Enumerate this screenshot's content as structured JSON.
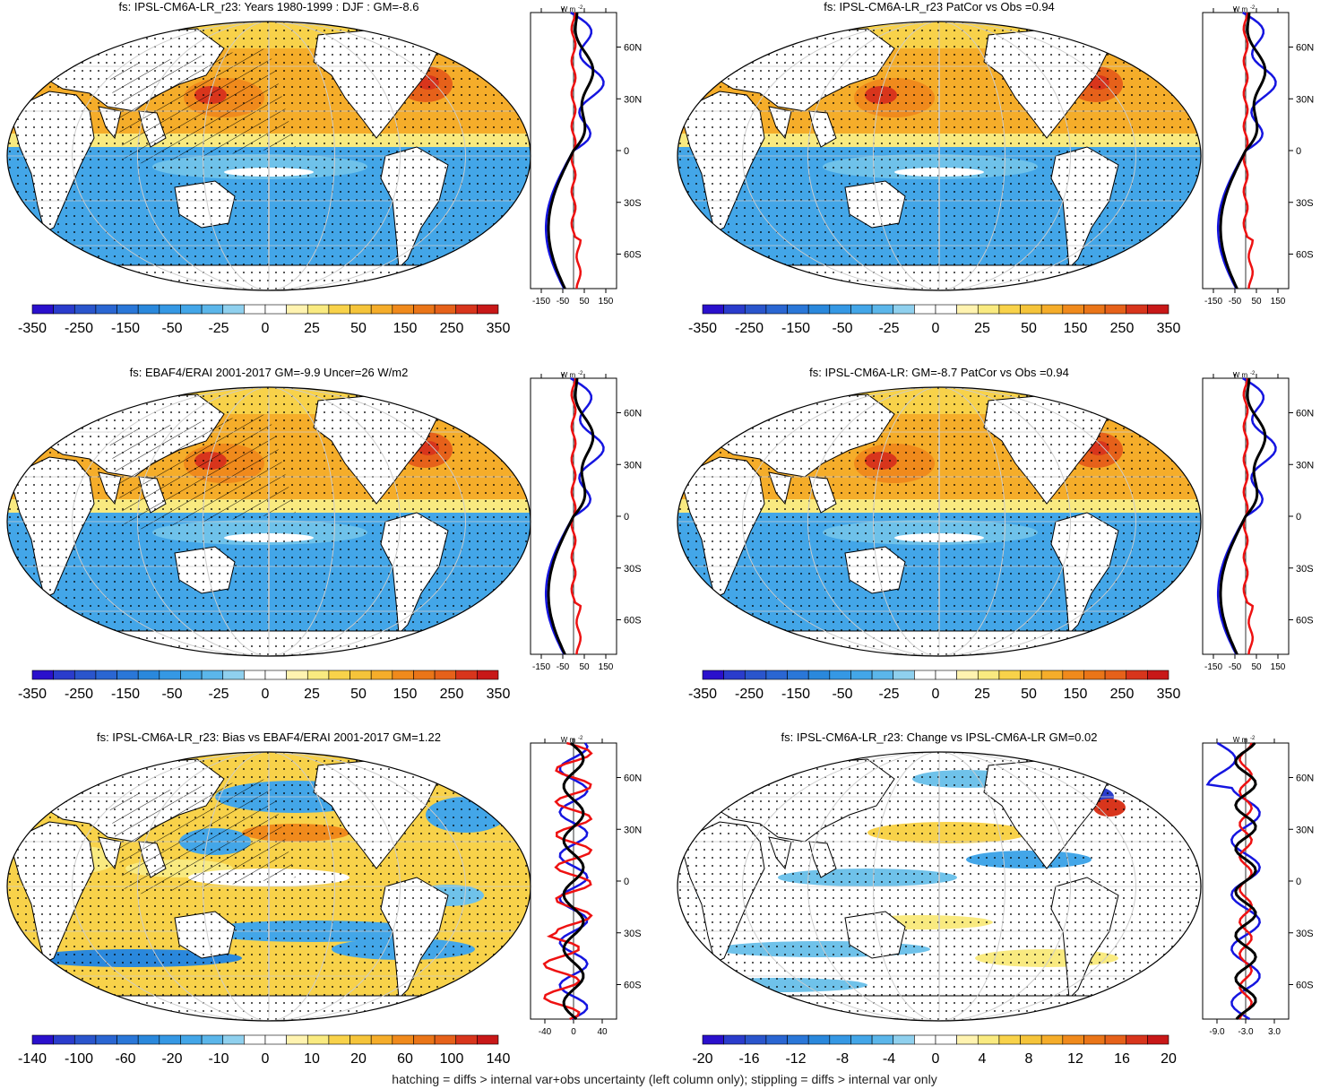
{
  "footnote": "hatching = diffs > internal var+obs uncertainty (left column only); stippling = diffs > internal var only",
  "colors": {
    "land": "#ffffff",
    "warm": [
      "#f9ea80",
      "#f8d24a",
      "#f5ad2a",
      "#f08a1c",
      "#e6611a",
      "#d8351c"
    ],
    "cool": [
      "#6fc2ea",
      "#43a6e8",
      "#2a88dc",
      "#2a66d2",
      "#2a3ccc",
      "#2a10cc"
    ],
    "profile_model": "#000000",
    "profile_obs": "#1515e0",
    "profile_diff": "#ee1111"
  },
  "zonal_axis": {
    "unit_label": "W m",
    "unit_sup": "-2",
    "lat_labels": [
      "60N",
      "30N",
      "0",
      "30S",
      "60S"
    ]
  },
  "panels": [
    {
      "title": "fs: IPSL-CM6A-LR_r23: Years 1980-1999 : DJF : GM=-8.6",
      "colorbar_labels": [
        "-350",
        "-250",
        "-150",
        "-50",
        "-25",
        "0",
        "25",
        "50",
        "150",
        "250",
        "350"
      ],
      "profile_ticks": [
        "-150",
        "-50",
        "50",
        "150"
      ],
      "pattern": "clim",
      "hatch": true
    },
    {
      "title": "fs: IPSL-CM6A-LR_r23 PatCor vs Obs =0.94",
      "colorbar_labels": [
        "-350",
        "-250",
        "-150",
        "-50",
        "-25",
        "0",
        "25",
        "50",
        "150",
        "250",
        "350"
      ],
      "profile_ticks": [
        "-150",
        "-50",
        "50",
        "150"
      ],
      "pattern": "clim",
      "hatch": false
    },
    {
      "title": "fs: EBAF4/ERAI 2001-2017 GM=-9.9 Uncer=26 W/m2",
      "colorbar_labels": [
        "-350",
        "-250",
        "-150",
        "-50",
        "-25",
        "0",
        "25",
        "50",
        "150",
        "250",
        "350"
      ],
      "profile_ticks": [
        "-150",
        "-50",
        "50",
        "150"
      ],
      "pattern": "clim",
      "hatch": true
    },
    {
      "title": "fs: IPSL-CM6A-LR: GM=-8.7 PatCor vs Obs =0.94",
      "colorbar_labels": [
        "-350",
        "-250",
        "-150",
        "-50",
        "-25",
        "0",
        "25",
        "50",
        "150",
        "250",
        "350"
      ],
      "profile_ticks": [
        "-150",
        "-50",
        "50",
        "150"
      ],
      "pattern": "clim",
      "hatch": false
    },
    {
      "title": "fs: IPSL-CM6A-LR_r23: Bias vs EBAF4/ERAI 2001-2017 GM=1.22",
      "colorbar_labels": [
        "-140",
        "-100",
        "-60",
        "-20",
        "-10",
        "0",
        "10",
        "20",
        "60",
        "100",
        "140"
      ],
      "profile_ticks": [
        "-40",
        "0",
        "40"
      ],
      "pattern": "bias",
      "hatch": true
    },
    {
      "title": "fs: IPSL-CM6A-LR_r23: Change vs IPSL-CM6A-LR GM=0.02",
      "colorbar_labels": [
        "-20",
        "-16",
        "-12",
        "-8",
        "-4",
        "0",
        "4",
        "8",
        "12",
        "16",
        "20"
      ],
      "profile_ticks": [
        "-9.0",
        "-3.0",
        "3.0"
      ],
      "pattern": "change",
      "hatch": false
    }
  ]
}
